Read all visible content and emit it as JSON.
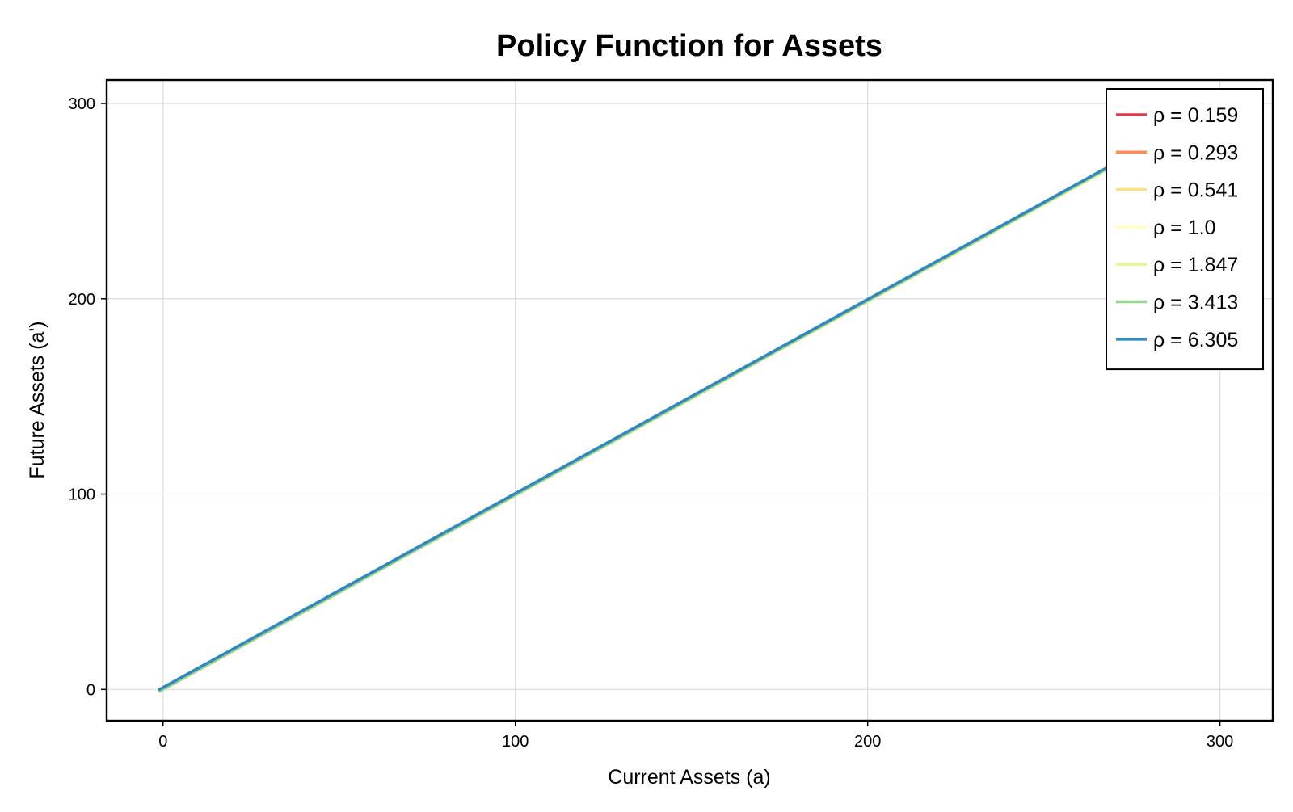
{
  "chart_data": {
    "type": "line",
    "title": "Policy Function for Assets",
    "xlabel": "Current Assets (a)",
    "ylabel": "Future Assets (a')",
    "xlim": [
      -16,
      315
    ],
    "ylim": [
      -16,
      312
    ],
    "xticks": [
      0,
      100,
      200,
      300
    ],
    "yticks": [
      0,
      100,
      200,
      300
    ],
    "xtick_labels": [
      "0",
      "100",
      "200",
      "300"
    ],
    "ytick_labels": [
      "0",
      "100",
      "200",
      "300"
    ],
    "grid": true,
    "legend_position": "top-right",
    "series": [
      {
        "name": "ρ = 0.159",
        "color": "#d53e4f",
        "x": [
          -1,
          300
        ],
        "y": [
          -1,
          298
        ]
      },
      {
        "name": "ρ = 0.293",
        "color": "#fc8d59",
        "x": [
          -1,
          300
        ],
        "y": [
          -1,
          298
        ]
      },
      {
        "name": "ρ = 0.541",
        "color": "#fee08b",
        "x": [
          -1,
          300
        ],
        "y": [
          -1,
          298
        ]
      },
      {
        "name": "ρ = 1.0",
        "color": "#ffffbf",
        "x": [
          -1,
          300
        ],
        "y": [
          -1,
          298
        ]
      },
      {
        "name": "ρ = 1.847",
        "color": "#e6f598",
        "x": [
          -1,
          300
        ],
        "y": [
          -1,
          298
        ]
      },
      {
        "name": "ρ = 3.413",
        "color": "#99d594",
        "x": [
          -1,
          300
        ],
        "y": [
          -1,
          298.5
        ]
      },
      {
        "name": "ρ = 6.305",
        "color": "#3288bd",
        "x": [
          -1,
          300
        ],
        "y": [
          0,
          299
        ]
      }
    ]
  }
}
